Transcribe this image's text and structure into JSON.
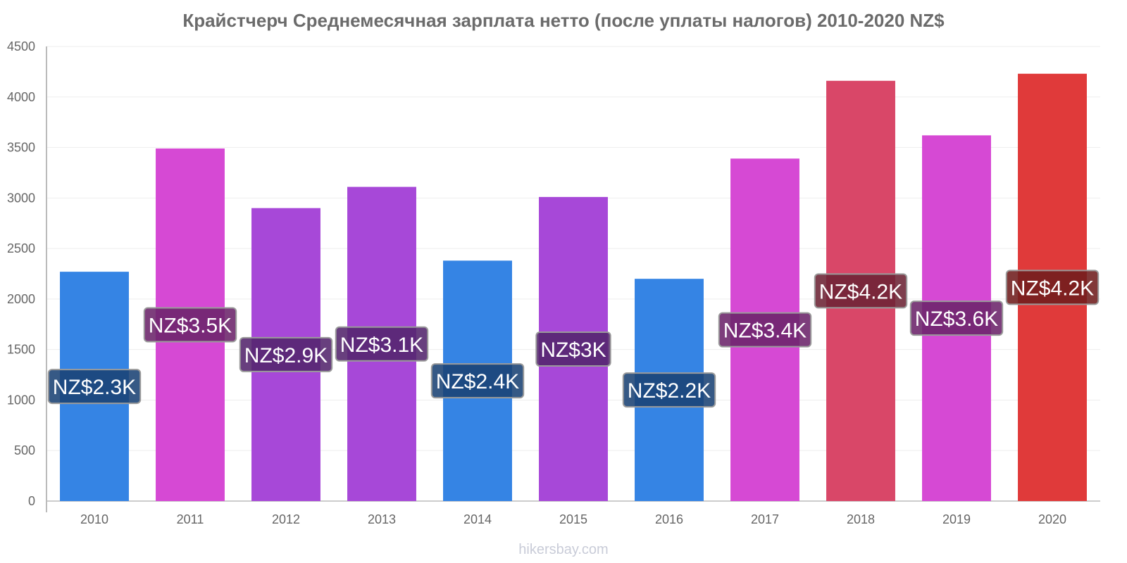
{
  "chart_data": {
    "type": "bar",
    "title": "Крайстчерч Среднемесячная зарплата нетто (после уплаты налогов) 2010-2020 NZ$",
    "xlabel": "",
    "ylabel": "",
    "ylim": [
      0,
      4500
    ],
    "yticks": [
      0,
      500,
      1000,
      1500,
      2000,
      2500,
      3000,
      3500,
      4000,
      4500
    ],
    "grid": true,
    "categories": [
      "2010",
      "2011",
      "2012",
      "2013",
      "2014",
      "2015",
      "2016",
      "2017",
      "2018",
      "2019",
      "2020"
    ],
    "values": [
      2270,
      3490,
      2900,
      3110,
      2380,
      3010,
      2200,
      3390,
      4160,
      3620,
      4230
    ],
    "data_labels": [
      "NZ$2.3K",
      "NZ$3.5K",
      "NZ$2.9K",
      "NZ$3.1K",
      "NZ$2.4K",
      "NZ$3K",
      "NZ$2.2K",
      "NZ$3.4K",
      "NZ$4.2K",
      "NZ$3.6K",
      "NZ$4.2K"
    ],
    "colors": [
      "#3584e4",
      "#d649d4",
      "#a748d8",
      "#a748d8",
      "#3584e4",
      "#a748d8",
      "#3584e4",
      "#d649d4",
      "#d94768",
      "#d649d4",
      "#e03a3a"
    ],
    "label_bg_colors": [
      "#1a4274",
      "#6b236a",
      "#53246c",
      "#53246c",
      "#1a4274",
      "#53246c",
      "#1a4274",
      "#6b236a",
      "#6c2334",
      "#6b236a",
      "#701d1d"
    ]
  },
  "footer": {
    "watermark": "hikersbay.com"
  }
}
